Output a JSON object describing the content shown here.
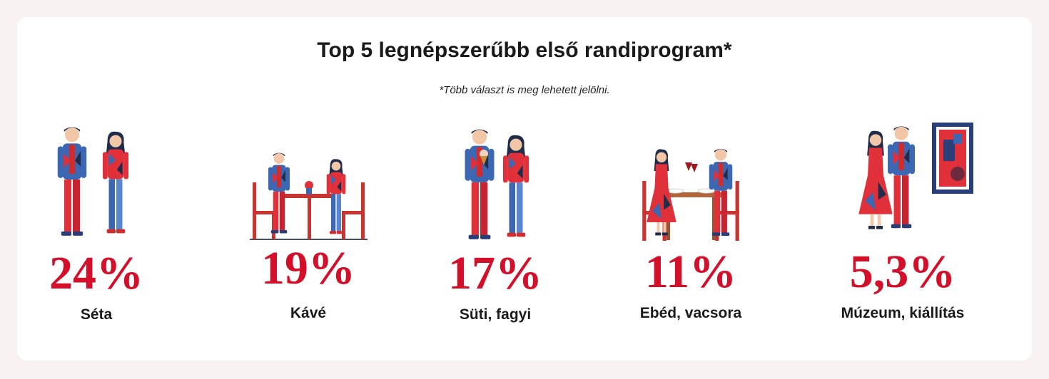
{
  "header": {
    "title": "Top 5 legnépszerűbb első randiprogram*",
    "subtitle": "*Több választ is meg lehetett jelölni."
  },
  "items": [
    {
      "value": "24%",
      "label": "Séta"
    },
    {
      "value": "19%",
      "label": "Kávé"
    },
    {
      "value": "17%",
      "label": "Süti, fagyi"
    },
    {
      "value": "11%",
      "label": "Ebéd, vacsora"
    },
    {
      "value": "5,3%",
      "label": "Múzeum, kiállítás"
    }
  ]
}
